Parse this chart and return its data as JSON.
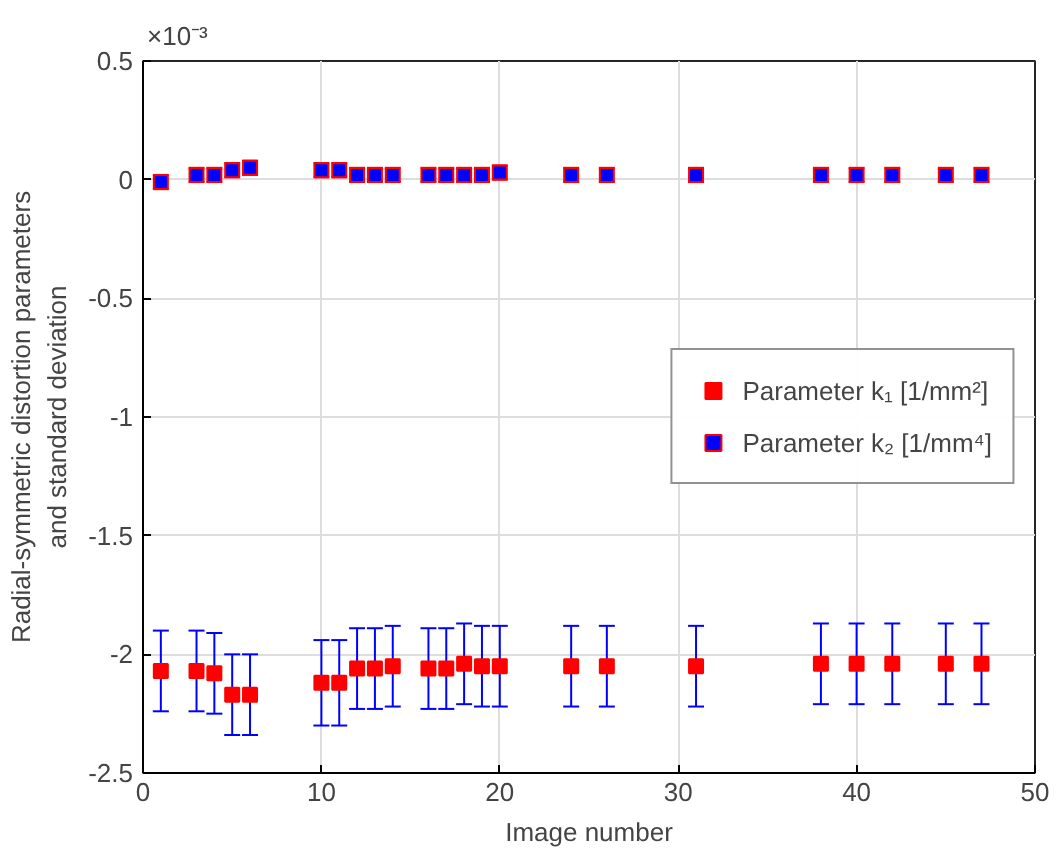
{
  "chart_data": {
    "type": "scatter",
    "xlabel": "Image number",
    "ylabel": "Radial-symmetric distortion parameters\nand standard deviation",
    "annotations": [
      "×10⁻³"
    ],
    "x": [
      1,
      3,
      4,
      5,
      6,
      10,
      11,
      12,
      13,
      14,
      16,
      17,
      18,
      19,
      20,
      24,
      26,
      31,
      38,
      40,
      42,
      45,
      47
    ],
    "series": [
      {
        "name": "Parameter k₁ [1/mm²]",
        "color": "#ff0000",
        "values": [
          -2.07,
          -2.07,
          -2.08,
          -2.17,
          -2.17,
          -2.12,
          -2.12,
          -2.06,
          -2.06,
          -2.05,
          -2.06,
          -2.06,
          -2.04,
          -2.05,
          -2.05,
          -2.05,
          -2.05,
          -2.05,
          -2.04,
          -2.04,
          -2.04,
          -2.04,
          -2.04
        ],
        "errors": [
          0.17,
          0.17,
          0.17,
          0.17,
          0.17,
          0.18,
          0.18,
          0.17,
          0.17,
          0.17,
          0.17,
          0.17,
          0.17,
          0.17,
          0.17,
          0.17,
          0.17,
          0.17,
          0.17,
          0.17,
          0.17,
          0.17,
          0.17
        ]
      },
      {
        "name": "Parameter k₂ [1/mm⁴]",
        "color": "#0000ff",
        "values": [
          -0.01,
          0.02,
          0.02,
          0.04,
          0.05,
          0.04,
          0.04,
          0.02,
          0.02,
          0.02,
          0.02,
          0.02,
          0.02,
          0.02,
          0.03,
          0.02,
          0.02,
          0.02,
          0.02,
          0.02,
          0.02,
          0.02,
          0.02
        ],
        "errors": [
          0.03,
          0.03,
          0.03,
          0.03,
          0.03,
          0.03,
          0.03,
          0.03,
          0.03,
          0.03,
          0.03,
          0.03,
          0.03,
          0.03,
          0.03,
          0.03,
          0.03,
          0.03,
          0.03,
          0.03,
          0.03,
          0.03,
          0.03
        ]
      }
    ],
    "xlim": [
      0,
      50
    ],
    "xticks": [
      0,
      10,
      20,
      30,
      40,
      50
    ],
    "ylim": [
      -2.5,
      0.5
    ],
    "yticks": [
      {
        "value": 0.5,
        "label": "0.5"
      },
      {
        "value": 0,
        "label": "0"
      },
      {
        "value": -0.5,
        "label": "-0.5"
      },
      {
        "value": -1,
        "label": "-1"
      },
      {
        "value": -1.5,
        "label": "-1.5"
      },
      {
        "value": -2,
        "label": "-2"
      },
      {
        "value": -2.5,
        "label": "-2.5"
      }
    ],
    "grid": true,
    "legend": "right",
    "marker": "square"
  }
}
